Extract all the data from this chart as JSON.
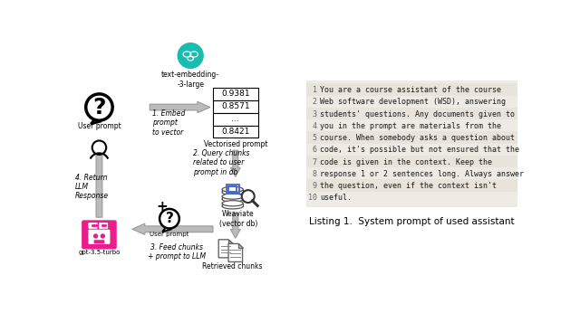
{
  "listing_caption": "Listing 1.  System prompt of used assistant",
  "code_lines": [
    "You are a course assistant of the course",
    "Web software development (WSD), answering",
    "students' questions. Any documents given to",
    "you in the prompt are materials from the",
    "course. When somebody asks a question about",
    "code, it's possible but not ensured that the",
    "code is given in the context. Keep the",
    "response 1 or 2 sentences long. Always answer",
    "the question, even if the context isn't",
    "useful."
  ],
  "vector_values": [
    "0.9381",
    "0.8571",
    "...",
    "0.8421"
  ],
  "bg_color": "#ffffff",
  "code_bg_color": "#eeebe4",
  "teal_color": "#1abcb0",
  "magenta_color": "#e91e8c",
  "arrow_col": "#bbbbbb",
  "arrow_outline": "#999999",
  "blue_color": "#4466cc"
}
